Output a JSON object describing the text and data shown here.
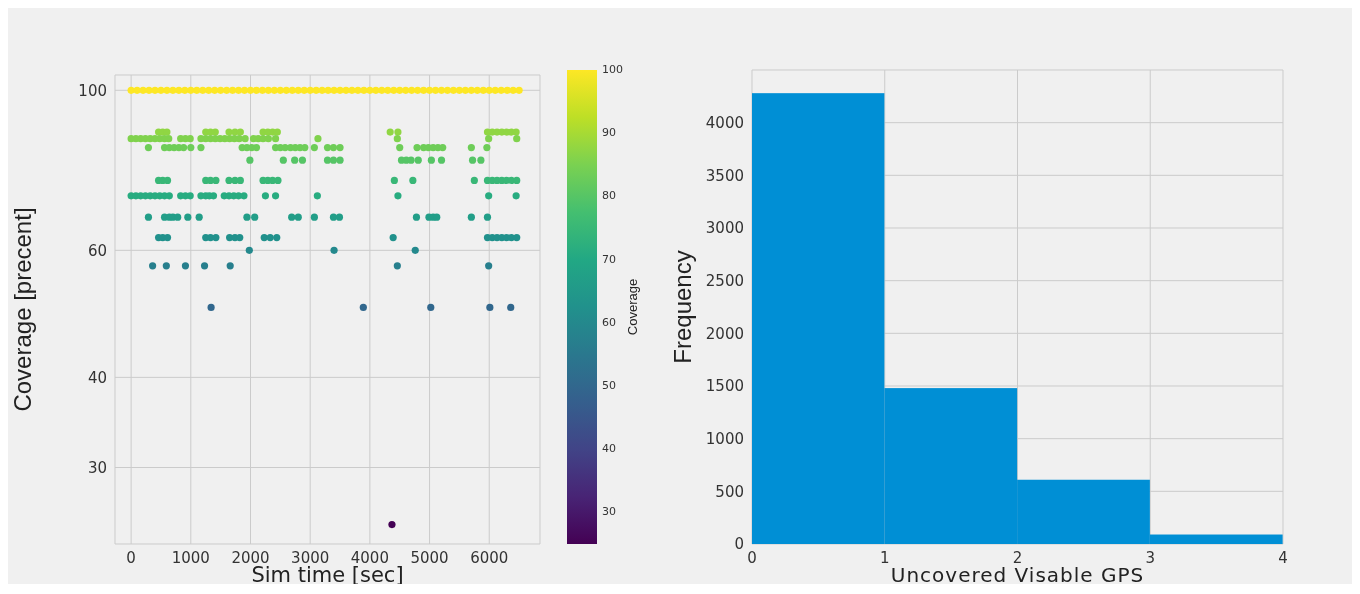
{
  "chart_data": [
    {
      "type": "scatter",
      "xlabel": "Sim time [sec]",
      "ylabel": "Coverage [precent]",
      "clabel": "Coverage",
      "log": "y",
      "grid": true,
      "marker": "circle",
      "xlim": [
        -270,
        6850
      ],
      "xticks": [
        0,
        1000,
        2000,
        3000,
        4000,
        5000,
        6000
      ],
      "ylim": [
        23.5,
        105
      ],
      "yticks": [
        30,
        40,
        60,
        100
      ],
      "clim": [
        25,
        100
      ],
      "cticks": [
        30,
        40,
        50,
        60,
        70,
        80,
        90,
        100
      ],
      "x": [
        0,
        100,
        200,
        300,
        400,
        500,
        600,
        700,
        800,
        900,
        1000,
        1100,
        1200,
        1300,
        1400,
        1500,
        1600,
        1700,
        1800,
        1900,
        2000,
        2100,
        2200,
        2300,
        2400,
        2500,
        2600,
        2700,
        2800,
        2900,
        3000,
        3100,
        3200,
        3300,
        3400,
        3500,
        3600,
        3700,
        3800,
        3900,
        4000,
        4100,
        4200,
        4300,
        4400,
        4500,
        4600,
        4700,
        4800,
        4900,
        5000,
        5100,
        5200,
        5300,
        5400,
        5500,
        5600,
        5700,
        5800,
        5900,
        6000,
        6100,
        6200,
        6300,
        6400,
        6500,
        460,
        530,
        600,
        1250,
        1330,
        1410,
        1640,
        1740,
        1830,
        2210,
        2290,
        2370,
        2450,
        4340,
        4470,
        5970,
        6050,
        6130,
        6210,
        6290,
        6370,
        6450,
        0,
        80,
        160,
        240,
        320,
        400,
        480,
        560,
        630,
        830,
        910,
        990,
        1170,
        1250,
        1330,
        1410,
        1490,
        1570,
        1650,
        1730,
        1810,
        1910,
        2050,
        2130,
        2210,
        2300,
        2420,
        3130,
        4460,
        5990,
        6460,
        290,
        560,
        640,
        720,
        800,
        880,
        1000,
        1170,
        1860,
        1940,
        2020,
        2100,
        2420,
        2500,
        2580,
        2670,
        2750,
        2830,
        2910,
        3070,
        3290,
        3390,
        3500,
        4500,
        4790,
        4900,
        4980,
        5060,
        5140,
        5220,
        5700,
        5960,
        1990,
        2550,
        2740,
        2870,
        3290,
        3390,
        3500,
        4530,
        4610,
        4690,
        4810,
        5030,
        5200,
        5720,
        5860,
        460,
        530,
        610,
        1250,
        1330,
        1420,
        1640,
        1740,
        1830,
        2210,
        2290,
        2370,
        2460,
        4410,
        4720,
        5750,
        5970,
        6050,
        6130,
        6210,
        6290,
        6370,
        6460,
        0,
        80,
        160,
        240,
        320,
        400,
        480,
        560,
        640,
        830,
        910,
        990,
        1170,
        1250,
        1310,
        1380,
        1560,
        1640,
        1720,
        1800,
        1890,
        2250,
        2420,
        3120,
        4470,
        5990,
        6450,
        290,
        560,
        640,
        700,
        780,
        950,
        1140,
        1940,
        2070,
        2690,
        2800,
        3070,
        3390,
        3490,
        4780,
        4990,
        5060,
        5120,
        5700,
        5970,
        460,
        530,
        610,
        1250,
        1330,
        1420,
        1650,
        1740,
        1820,
        2230,
        2330,
        2440,
        4390,
        5970,
        6050,
        6130,
        6210,
        6290,
        6370,
        6460,
        1980,
        3400,
        4760,
        360,
        590,
        910,
        1230,
        1660,
        4460,
        5990,
        1340,
        3890,
        5020,
        6010,
        6360,
        4370
      ],
      "values": [
        100,
        100,
        100,
        100,
        100,
        100,
        100,
        100,
        100,
        100,
        100,
        100,
        100,
        100,
        100,
        100,
        100,
        100,
        100,
        100,
        100,
        100,
        100,
        100,
        100,
        100,
        100,
        100,
        100,
        100,
        100,
        100,
        100,
        100,
        100,
        100,
        100,
        100,
        100,
        100,
        100,
        100,
        100,
        100,
        100,
        100,
        100,
        100,
        100,
        100,
        100,
        100,
        100,
        100,
        100,
        100,
        100,
        100,
        100,
        100,
        100,
        100,
        100,
        100,
        100,
        100,
        87.5,
        87.5,
        87.5,
        87.5,
        87.5,
        87.5,
        87.5,
        87.5,
        87.5,
        87.5,
        87.5,
        87.5,
        87.5,
        87.5,
        87.5,
        87.5,
        87.5,
        87.5,
        87.5,
        87.5,
        87.5,
        87.5,
        85.7,
        85.7,
        85.7,
        85.7,
        85.7,
        85.7,
        85.7,
        85.7,
        85.7,
        85.7,
        85.7,
        85.7,
        85.7,
        85.7,
        85.7,
        85.7,
        85.7,
        85.7,
        85.7,
        85.7,
        85.7,
        85.7,
        85.7,
        85.7,
        85.7,
        85.7,
        85.7,
        85.7,
        85.7,
        85.7,
        85.7,
        83.3,
        83.3,
        83.3,
        83.3,
        83.3,
        83.3,
        83.3,
        83.3,
        83.3,
        83.3,
        83.3,
        83.3,
        83.3,
        83.3,
        83.3,
        83.3,
        83.3,
        83.3,
        83.3,
        83.3,
        83.3,
        83.3,
        83.3,
        83.3,
        83.3,
        83.3,
        83.3,
        83.3,
        83.3,
        83.3,
        83.3,
        83.3,
        80,
        80,
        80,
        80,
        80,
        80,
        80,
        80,
        80,
        80,
        80,
        80,
        80,
        80,
        80,
        75,
        75,
        75,
        75,
        75,
        75,
        75,
        75,
        75,
        75,
        75,
        75,
        75,
        75,
        75,
        75,
        75,
        75,
        75,
        75,
        75,
        75,
        75,
        71.4,
        71.4,
        71.4,
        71.4,
        71.4,
        71.4,
        71.4,
        71.4,
        71.4,
        71.4,
        71.4,
        71.4,
        71.4,
        71.4,
        71.4,
        71.4,
        71.4,
        71.4,
        71.4,
        71.4,
        71.4,
        71.4,
        71.4,
        71.4,
        71.4,
        71.4,
        71.4,
        66.7,
        66.7,
        66.7,
        66.7,
        66.7,
        66.7,
        66.7,
        66.7,
        66.7,
        66.7,
        66.7,
        66.7,
        66.7,
        66.7,
        66.7,
        66.7,
        66.7,
        66.7,
        66.7,
        66.7,
        62.5,
        62.5,
        62.5,
        62.5,
        62.5,
        62.5,
        62.5,
        62.5,
        62.5,
        62.5,
        62.5,
        62.5,
        62.5,
        62.5,
        62.5,
        62.5,
        62.5,
        62.5,
        62.5,
        62.5,
        60,
        60,
        60,
        57.1,
        57.1,
        57.1,
        57.1,
        57.1,
        57.1,
        57.1,
        50,
        50,
        50,
        50,
        50,
        25
      ],
      "cvalues": [
        100,
        100,
        100,
        100,
        100,
        100,
        100,
        100,
        100,
        100,
        100,
        100,
        100,
        100,
        100,
        100,
        100,
        100,
        100,
        100,
        100,
        100,
        100,
        100,
        100,
        100,
        100,
        100,
        100,
        100,
        100,
        100,
        100,
        100,
        100,
        100,
        100,
        100,
        100,
        100,
        100,
        100,
        100,
        100,
        100,
        100,
        100,
        100,
        100,
        100,
        100,
        100,
        100,
        100,
        100,
        100,
        100,
        100,
        100,
        100,
        100,
        100,
        100,
        100,
        100,
        100,
        87.5,
        87.5,
        87.5,
        87.5,
        87.5,
        87.5,
        87.5,
        87.5,
        87.5,
        87.5,
        87.5,
        87.5,
        87.5,
        87.5,
        87.5,
        87.5,
        87.5,
        87.5,
        87.5,
        87.5,
        87.5,
        87.5,
        85.7,
        85.7,
        85.7,
        85.7,
        85.7,
        85.7,
        85.7,
        85.7,
        85.7,
        85.7,
        85.7,
        85.7,
        85.7,
        85.7,
        85.7,
        85.7,
        85.7,
        85.7,
        85.7,
        85.7,
        85.7,
        85.7,
        85.7,
        85.7,
        85.7,
        85.7,
        85.7,
        85.7,
        85.7,
        85.7,
        85.7,
        83.3,
        83.3,
        83.3,
        83.3,
        83.3,
        83.3,
        83.3,
        83.3,
        83.3,
        83.3,
        83.3,
        83.3,
        83.3,
        83.3,
        83.3,
        83.3,
        83.3,
        83.3,
        83.3,
        83.3,
        83.3,
        83.3,
        83.3,
        83.3,
        83.3,
        83.3,
        83.3,
        83.3,
        83.3,
        83.3,
        83.3,
        83.3,
        80,
        80,
        80,
        80,
        80,
        80,
        80,
        80,
        80,
        80,
        80,
        80,
        80,
        80,
        80,
        75,
        75,
        75,
        75,
        75,
        75,
        75,
        75,
        75,
        75,
        75,
        75,
        75,
        75,
        75,
        75,
        75,
        75,
        75,
        75,
        75,
        75,
        75,
        71.4,
        71.4,
        71.4,
        71.4,
        71.4,
        71.4,
        71.4,
        71.4,
        71.4,
        71.4,
        71.4,
        71.4,
        71.4,
        71.4,
        71.4,
        71.4,
        71.4,
        71.4,
        71.4,
        71.4,
        71.4,
        71.4,
        71.4,
        71.4,
        71.4,
        71.4,
        71.4,
        66.7,
        66.7,
        66.7,
        66.7,
        66.7,
        66.7,
        66.7,
        66.7,
        66.7,
        66.7,
        66.7,
        66.7,
        66.7,
        66.7,
        66.7,
        66.7,
        66.7,
        66.7,
        66.7,
        66.7,
        62.5,
        62.5,
        62.5,
        62.5,
        62.5,
        62.5,
        62.5,
        62.5,
        62.5,
        62.5,
        62.5,
        62.5,
        62.5,
        62.5,
        62.5,
        62.5,
        62.5,
        62.5,
        62.5,
        62.5,
        60,
        60,
        60,
        57.1,
        57.1,
        57.1,
        57.1,
        57.1,
        57.1,
        57.1,
        50,
        50,
        50,
        50,
        50,
        25
      ]
    },
    {
      "type": "histogram",
      "xlabel": "Uncovered Visable GPS",
      "ylabel": "Frequency",
      "grid": true,
      "color": "#008fd5",
      "bins": [
        0,
        1,
        2,
        3,
        4
      ],
      "values": [
        4280,
        1480,
        610,
        90
      ],
      "xlim": [
        0,
        4
      ],
      "xticks": [
        0,
        1,
        2,
        3,
        4
      ],
      "ylim": [
        0,
        4500
      ],
      "yticks": [
        0,
        500,
        1000,
        1500,
        2000,
        2500,
        3000,
        3500,
        4000
      ]
    }
  ]
}
